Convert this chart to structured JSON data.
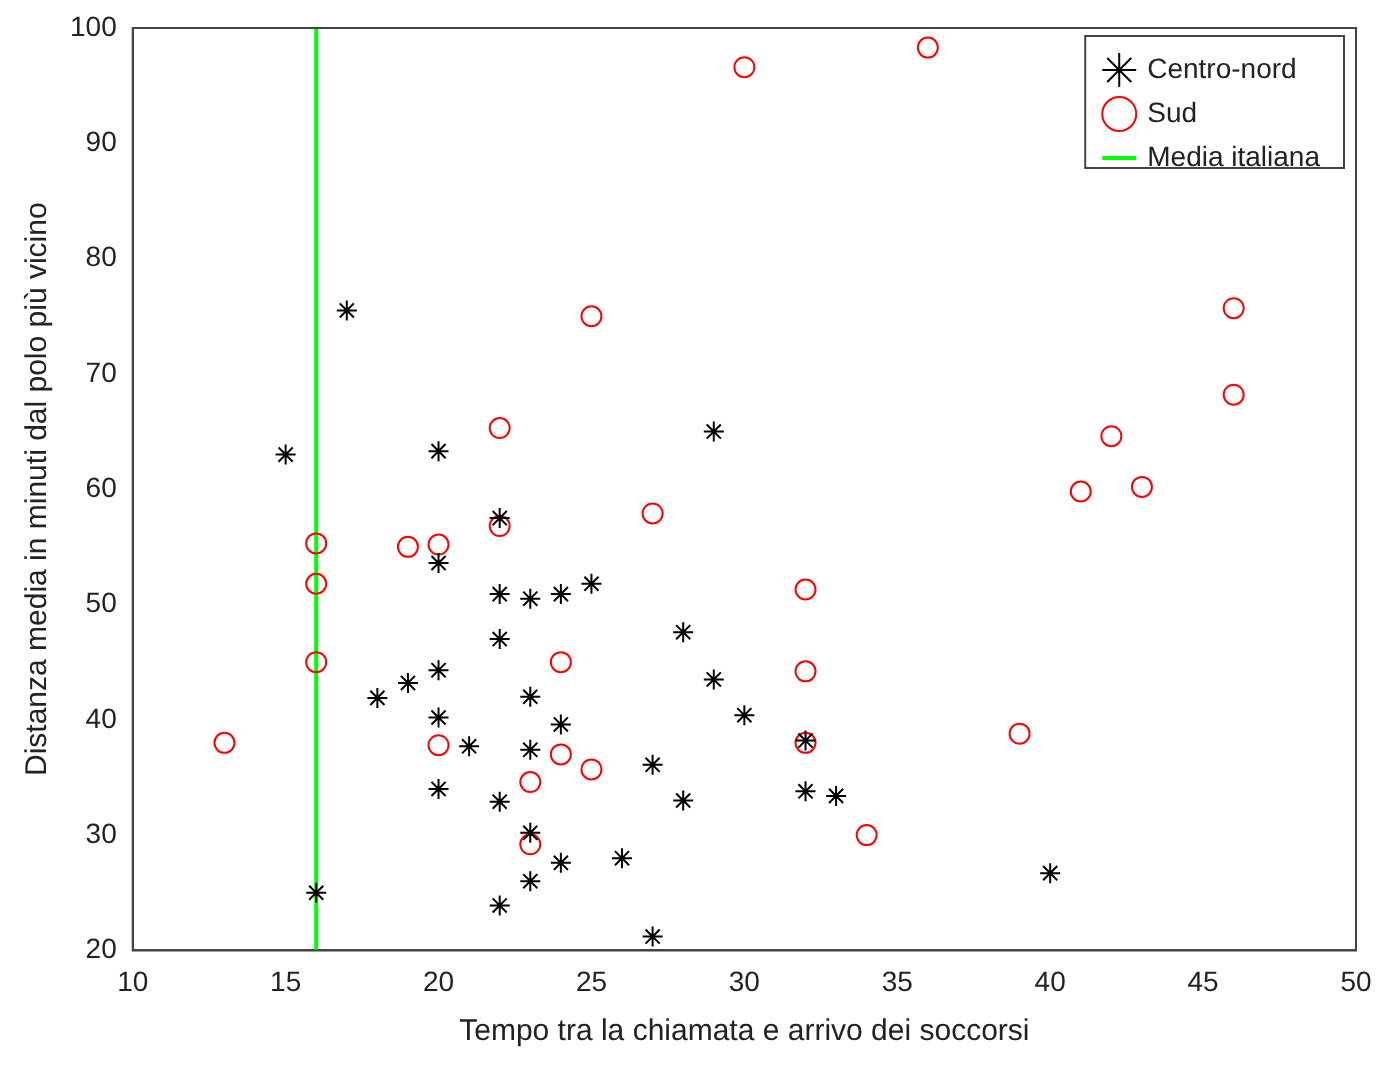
{
  "chart_data": {
    "type": "scatter",
    "xlabel": "Tempo tra la chiamata e arrivo dei soccorsi",
    "ylabel": "Distanza media in minuti dal polo più vicino",
    "xlim": [
      10,
      50
    ],
    "xticks": [
      10,
      15,
      20,
      25,
      30,
      35,
      40,
      45,
      50
    ],
    "ylim": [
      20,
      100
    ],
    "yticks": [
      20,
      30,
      40,
      50,
      60,
      70,
      80,
      90,
      100
    ],
    "grid": false,
    "legend": "top right",
    "series": [
      {
        "name": "Centro-nord",
        "color": "#000000",
        "marker": "cross",
        "x": [
          17,
          15,
          20,
          29,
          22,
          20,
          22,
          23,
          24,
          25,
          22,
          28,
          20,
          19,
          18,
          21,
          20,
          23,
          24,
          29,
          30,
          23,
          32,
          20,
          22,
          27,
          28,
          32,
          33,
          23,
          24,
          26,
          23,
          22,
          16,
          27,
          40
        ],
        "values": [
          75.5,
          63,
          63.3,
          65,
          57.5,
          53.6,
          50.9,
          50.5,
          50.9,
          51.8,
          47,
          47.6,
          44.3,
          43.2,
          41.9,
          37.7,
          40.2,
          42,
          39.6,
          43.5,
          40.4,
          37.4,
          38.2,
          34,
          32.9,
          36.1,
          33,
          33.8,
          33.4,
          30.2,
          27.6,
          28,
          26,
          23.9,
          25,
          21.2,
          26.7
        ]
      },
      {
        "name": "Sud",
        "color": "#ff0000",
        "marker": "circle",
        "x": [
          36,
          30,
          25,
          46,
          46,
          22,
          42,
          41,
          43,
          27,
          16,
          19,
          20,
          22,
          16,
          32,
          16,
          24,
          32,
          13,
          20,
          24,
          32,
          23,
          25,
          39,
          34,
          23
        ],
        "values": [
          98.3,
          96.6,
          75,
          75.7,
          68.2,
          65.3,
          64.6,
          59.8,
          60.2,
          57.9,
          55.3,
          55,
          55.2,
          56.8,
          51.8,
          51.3,
          45,
          45,
          44.2,
          38,
          37.8,
          37,
          38,
          34.6,
          35.7,
          38.8,
          30,
          29.2
        ]
      },
      {
        "name": "Media italiana",
        "type": "line",
        "color": "#00ff00",
        "marker": "none",
        "line_style": "solid",
        "x": [
          16,
          16
        ],
        "values": [
          20,
          100
        ]
      }
    ]
  }
}
